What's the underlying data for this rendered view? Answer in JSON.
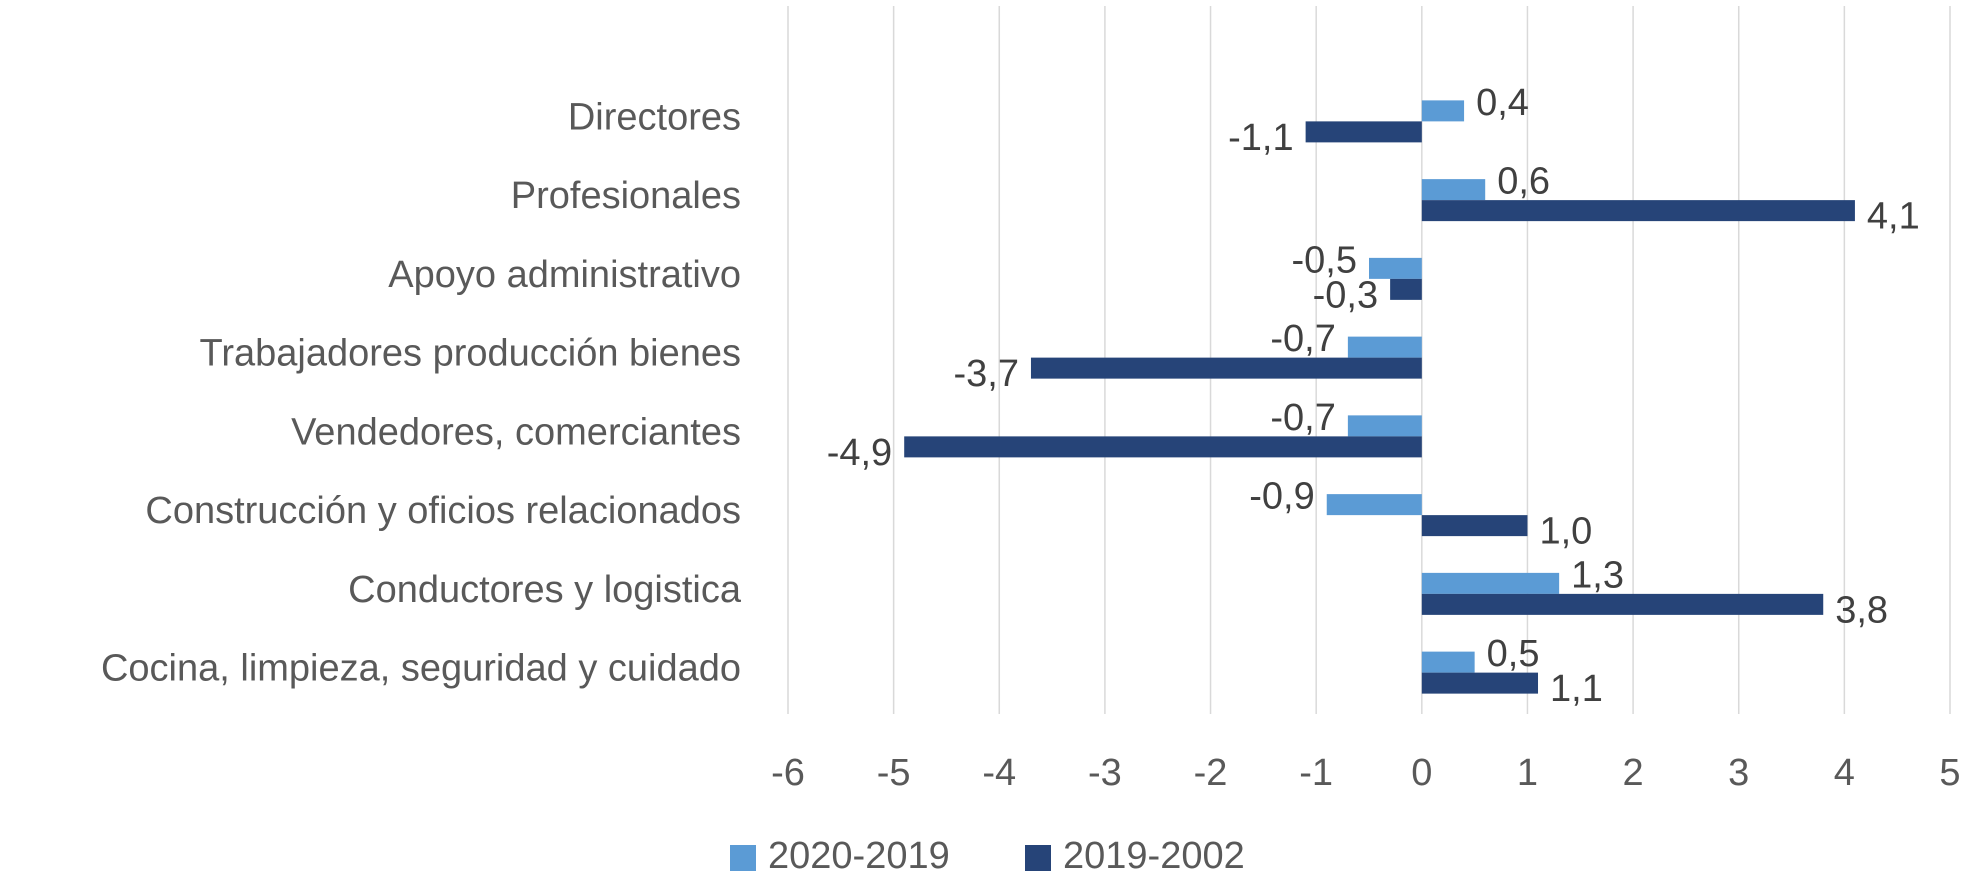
{
  "chart_data": {
    "type": "hbar",
    "categories": [
      "Directores",
      "Profesionales",
      "Apoyo administrativo",
      "Trabajadores producción bienes",
      "Vendedores, comerciantes",
      "Construcción y oficios relacionados",
      "Conductores y logistica",
      "Cocina, limpieza, seguridad y cuidado"
    ],
    "series": [
      {
        "name": "2020-2019",
        "color": "#5b9bd5",
        "values": [
          0.4,
          0.6,
          -0.5,
          -0.7,
          -0.7,
          -0.9,
          1.3,
          0.5
        ],
        "value_labels": [
          "0,4",
          "0,6",
          "-0,5",
          "-0,7",
          "-0,7",
          "-0,9",
          "1,3",
          "0,5"
        ]
      },
      {
        "name": "2019-2002",
        "color": "#264478",
        "values": [
          -1.1,
          4.1,
          -0.3,
          -3.7,
          -4.9,
          1.0,
          3.8,
          1.1
        ],
        "value_labels": [
          "-1,1",
          "4,1",
          "-0,3",
          "-3,7",
          "-4,9",
          "1,0",
          "3,8",
          "1,1"
        ]
      }
    ],
    "xlim": [
      -6,
      5
    ],
    "xticks": [
      -6,
      -5,
      -4,
      -3,
      -2,
      -1,
      0,
      1,
      2,
      3,
      4,
      5
    ],
    "grid": true,
    "legend": "bottom"
  }
}
